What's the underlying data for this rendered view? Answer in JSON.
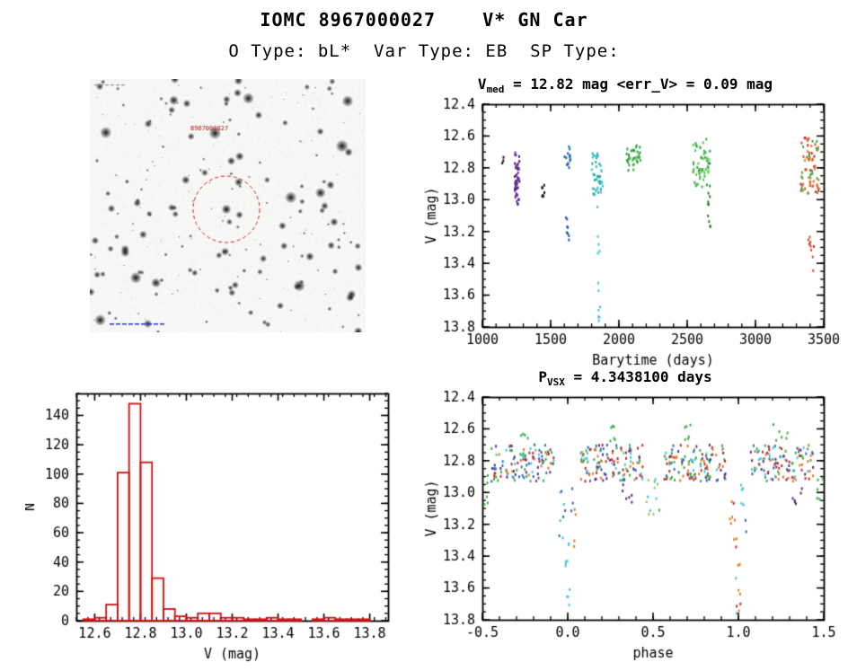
{
  "header": {
    "title": "IOMC 8967000027    V* GN Car",
    "subtitle": "O Type: bL*  Var Type: EB  SP Type:"
  },
  "finder": {
    "source_label": "8967000027",
    "target_circle_color": "#cc2222",
    "annotation_color": "#a01010",
    "footer_mark_color": "#2233bb"
  },
  "chart_data": [
    {
      "id": "lightcurve",
      "type": "scatter",
      "title_main": "V",
      "title_sub": "med",
      "title_rest": " = 12.82 mag <err_V> = 0.09 mag",
      "xlabel": "Barytime (days)",
      "ylabel": "V (mag)",
      "xlim": [
        1000,
        3500
      ],
      "ytop": 12.4,
      "ybottom": 13.8,
      "xticks": [
        1000,
        1500,
        2000,
        2500,
        3000,
        3500
      ],
      "xtick_labels": [
        "1000",
        "1500",
        "2000",
        "2500",
        "3000",
        "3500"
      ],
      "yticks": [
        12.4,
        12.6,
        12.8,
        13.0,
        13.2,
        13.4,
        13.6,
        13.8
      ],
      "ytick_labels": [
        "12.4",
        "12.6",
        "12.8",
        "13.0",
        "13.2",
        "13.4",
        "13.6",
        "13.8"
      ],
      "xminor": 100,
      "yminor": 0.05,
      "seed": 42,
      "clusters": [
        {
          "x": [
            1140,
            1162
          ],
          "v": [
            12.72,
            12.8
          ],
          "n": 3,
          "colors": [
            "#161616"
          ]
        },
        {
          "x": [
            1237,
            1272
          ],
          "v": [
            12.7,
            13.03
          ],
          "n": 48,
          "colors": [
            "#5c2a86",
            "#6d3a9e",
            "#4a1f78"
          ]
        },
        {
          "x": [
            1432,
            1468
          ],
          "v": [
            12.88,
            13.02
          ],
          "n": 7,
          "colors": [
            "#161616"
          ]
        },
        {
          "x": [
            1592,
            1648
          ],
          "v": [
            12.66,
            12.8
          ],
          "n": 14,
          "colors": [
            "#2b6cb8",
            "#1f5fae"
          ]
        },
        {
          "x": [
            1612,
            1642
          ],
          "v": [
            13.1,
            13.26
          ],
          "n": 8,
          "colors": [
            "#1f5fae"
          ]
        },
        {
          "x": [
            1800,
            1882
          ],
          "v": [
            12.7,
            12.98
          ],
          "n": 42,
          "colors": [
            "#35b6b0",
            "#45c6d6",
            "#2aa8a0"
          ]
        },
        {
          "x": [
            1840,
            1864
          ],
          "v": [
            13.02,
            13.46
          ],
          "n": 5,
          "colors": [
            "#45c6d6"
          ]
        },
        {
          "x": [
            1846,
            1862
          ],
          "v": [
            13.5,
            13.8
          ],
          "n": 7,
          "colors": [
            "#45c6d6"
          ]
        },
        {
          "x": [
            2052,
            2162
          ],
          "v": [
            12.66,
            12.82
          ],
          "n": 34,
          "colors": [
            "#3fae49",
            "#2f9e44"
          ]
        },
        {
          "x": [
            2542,
            2668
          ],
          "v": [
            12.62,
            12.92
          ],
          "n": 55,
          "colors": [
            "#3fae49",
            "#57c84d",
            "#2f9e44"
          ]
        },
        {
          "x": [
            2648,
            2674
          ],
          "v": [
            12.95,
            13.18
          ],
          "n": 9,
          "colors": [
            "#2e7d32"
          ]
        },
        {
          "x": [
            3332,
            3468
          ],
          "v": [
            12.6,
            12.96
          ],
          "n": 72,
          "colors": [
            "#e8791e",
            "#d9531e",
            "#3fae49",
            "#c62828"
          ]
        },
        {
          "x": [
            3388,
            3428
          ],
          "v": [
            13.22,
            13.47
          ],
          "n": 9,
          "colors": [
            "#c62828",
            "#d9531e"
          ]
        }
      ]
    },
    {
      "id": "histogram",
      "type": "bar",
      "xlabel": "V (mag)",
      "ylabel": "N",
      "xlim": [
        12.52,
        13.88
      ],
      "ytop": 155,
      "ybottom": 0,
      "xticks": [
        12.6,
        12.8,
        13.0,
        13.2,
        13.4,
        13.6,
        13.8
      ],
      "xtick_labels": [
        "12.6",
        "12.8",
        "13.0",
        "13.2",
        "13.4",
        "13.6",
        "13.8"
      ],
      "yticks": [
        0,
        20,
        40,
        60,
        80,
        100,
        120,
        140
      ],
      "ytick_labels": [
        "0",
        "20",
        "40",
        "60",
        "80",
        "100",
        "120",
        "140"
      ],
      "xminor": 0.05,
      "yminor": 5,
      "bin_start": 12.55,
      "bin_width": 0.05,
      "counts": [
        1,
        2,
        11,
        101,
        148,
        108,
        29,
        8,
        3,
        2,
        5,
        5,
        2,
        2,
        1,
        1,
        2,
        1,
        1,
        0,
        1,
        2,
        1,
        1,
        1
      ],
      "color": "#cc1111"
    },
    {
      "id": "phase",
      "type": "scatter",
      "title_main": "P",
      "title_sub": "VSX",
      "title_rest": " = 4.3438100 days",
      "xlabel": "phase",
      "ylabel": "V (mag)",
      "xlim": [
        -0.5,
        1.5
      ],
      "ytop": 12.4,
      "ybottom": 13.8,
      "xticks": [
        -0.5,
        0.0,
        0.5,
        1.0,
        1.5
      ],
      "xtick_labels": [
        "-0.5",
        "0.0",
        "0.5",
        "1.0",
        "1.5"
      ],
      "yticks": [
        12.4,
        12.6,
        12.8,
        13.0,
        13.2,
        13.4,
        13.6,
        13.8
      ],
      "ytick_labels": [
        "12.4",
        "12.6",
        "12.8",
        "13.0",
        "13.2",
        "13.4",
        "13.6",
        "13.8"
      ],
      "xminor": 0.1,
      "yminor": 0.05,
      "seed": 99,
      "clusters": [
        {
          "x": [
            -0.45,
            -0.08
          ],
          "v": [
            12.7,
            12.93
          ],
          "n": 110,
          "colors": [
            "#c62828",
            "#e8791e",
            "#3fae49",
            "#45c6d6",
            "#2b6cb8",
            "#5c2a86"
          ]
        },
        {
          "x": [
            0.07,
            0.44
          ],
          "v": [
            12.7,
            12.93
          ],
          "n": 120,
          "colors": [
            "#c62828",
            "#e8791e",
            "#3fae49",
            "#45c6d6",
            "#2b6cb8",
            "#5c2a86"
          ]
        },
        {
          "x": [
            0.56,
            0.93
          ],
          "v": [
            12.7,
            12.93
          ],
          "n": 120,
          "colors": [
            "#c62828",
            "#e8791e",
            "#3fae49",
            "#45c6d6",
            "#2b6cb8",
            "#5c2a86"
          ]
        },
        {
          "x": [
            1.07,
            1.44
          ],
          "v": [
            12.7,
            12.93
          ],
          "n": 110,
          "colors": [
            "#c62828",
            "#e8791e",
            "#3fae49",
            "#45c6d6",
            "#2b6cb8",
            "#5c2a86"
          ]
        },
        {
          "x": [
            0.2,
            0.3
          ],
          "v": [
            12.55,
            12.68
          ],
          "n": 6,
          "colors": [
            "#3fae49"
          ]
        },
        {
          "x": [
            0.68,
            0.78
          ],
          "v": [
            12.55,
            12.68
          ],
          "n": 6,
          "colors": [
            "#3fae49"
          ]
        },
        {
          "x": [
            1.2,
            1.3
          ],
          "v": [
            12.55,
            12.68
          ],
          "n": 6,
          "colors": [
            "#3fae49"
          ]
        },
        {
          "x": [
            -0.3,
            -0.22
          ],
          "v": [
            12.58,
            12.68
          ],
          "n": 4,
          "colors": [
            "#3fae49"
          ]
        },
        {
          "x": [
            0.3,
            0.38
          ],
          "v": [
            12.95,
            13.08
          ],
          "n": 6,
          "colors": [
            "#5c2a86"
          ]
        },
        {
          "x": [
            1.3,
            1.38
          ],
          "v": [
            12.95,
            13.08
          ],
          "n": 6,
          "colors": [
            "#5c2a86"
          ]
        },
        {
          "x": [
            -0.05,
            -0.012
          ],
          "v": [
            12.95,
            13.35
          ],
          "n": 8,
          "colors": [
            "#2b6cb8",
            "#45c6d6"
          ]
        },
        {
          "x": [
            -0.015,
            0.015
          ],
          "v": [
            13.28,
            13.78
          ],
          "n": 10,
          "colors": [
            "#45c6d6"
          ]
        },
        {
          "x": [
            0.012,
            0.05
          ],
          "v": [
            12.95,
            13.35
          ],
          "n": 7,
          "colors": [
            "#e8791e",
            "#2b6cb8"
          ]
        },
        {
          "x": [
            0.95,
            0.988
          ],
          "v": [
            12.95,
            13.35
          ],
          "n": 8,
          "colors": [
            "#c62828",
            "#e8791e"
          ]
        },
        {
          "x": [
            0.985,
            1.015
          ],
          "v": [
            13.28,
            13.76
          ],
          "n": 10,
          "colors": [
            "#c62828",
            "#e8791e",
            "#45c6d6"
          ]
        },
        {
          "x": [
            1.012,
            1.05
          ],
          "v": [
            12.95,
            13.35
          ],
          "n": 7,
          "colors": [
            "#2b6cb8",
            "#45c6d6"
          ]
        },
        {
          "x": [
            0.46,
            0.54
          ],
          "v": [
            12.9,
            13.14
          ],
          "n": 12,
          "colors": [
            "#3fae49",
            "#45c6d6",
            "#8fd14f"
          ]
        },
        {
          "x": [
            -0.5,
            -0.46
          ],
          "v": [
            12.88,
            13.1
          ],
          "n": 5,
          "colors": [
            "#3fae49"
          ]
        },
        {
          "x": [
            1.46,
            1.5
          ],
          "v": [
            12.88,
            13.1
          ],
          "n": 5,
          "colors": [
            "#3fae49"
          ]
        }
      ]
    }
  ]
}
